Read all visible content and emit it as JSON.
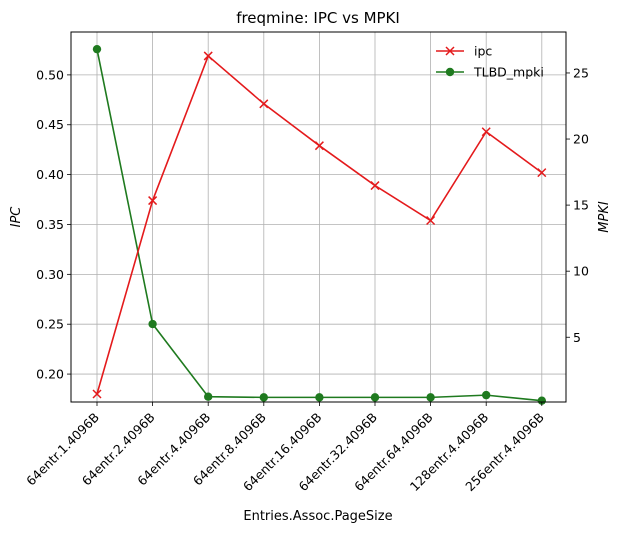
{
  "chart_data": {
    "type": "line",
    "title": "freqmine: IPC vs MPKI",
    "xlabel": "Entries.Assoc.PageSize",
    "ylabel_left": "IPC",
    "ylabel_right": "MPKI",
    "categories": [
      "64entr.1.4096B",
      "64entr.2.4096B",
      "64entr.4.4096B",
      "64entr.8.4096B",
      "64entr.16.4096B",
      "64entr.32.4096B",
      "64entr.64.4096B",
      "128entr.4.4096B",
      "256entr.4.4096B"
    ],
    "series": [
      {
        "name": "ipc",
        "axis": "left",
        "color": "#e41a1c",
        "marker": "x",
        "values": [
          0.18,
          0.374,
          0.519,
          0.471,
          0.429,
          0.389,
          0.354,
          0.443,
          0.402
        ]
      },
      {
        "name": "TLBD_mpki",
        "axis": "right",
        "color": "#1f7a1f",
        "marker": "circle",
        "values": [
          26.8,
          6.0,
          0.5,
          0.45,
          0.45,
          0.45,
          0.45,
          0.62,
          0.2
        ]
      }
    ],
    "y_left": {
      "lim": [
        0.172,
        0.543
      ],
      "ticks": [
        0.2,
        0.25,
        0.3,
        0.35,
        0.4,
        0.45,
        0.5
      ],
      "tick_labels": [
        "0.20",
        "0.25",
        "0.30",
        "0.35",
        "0.40",
        "0.45",
        "0.50"
      ]
    },
    "y_right": {
      "lim": [
        0.1,
        28.1
      ],
      "ticks": [
        5,
        10,
        15,
        20,
        25
      ],
      "tick_labels": [
        "5",
        "10",
        "15",
        "20",
        "25"
      ]
    },
    "grid": true,
    "legend_position": "upper-right"
  }
}
